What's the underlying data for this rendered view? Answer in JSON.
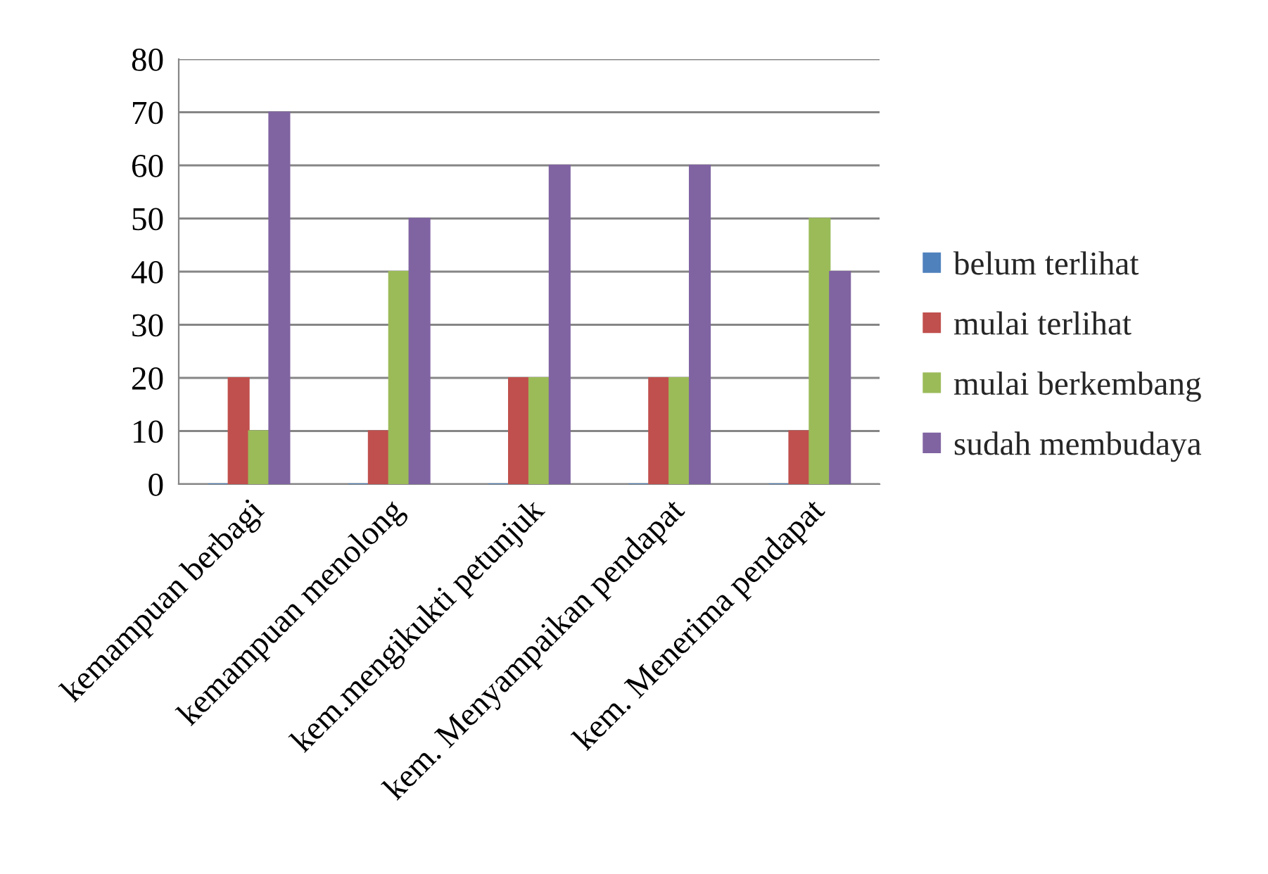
{
  "chart_data": {
    "type": "bar",
    "categories": [
      "kemampuan berbagi",
      "kemampuan menolong",
      "kem.mengikukti petunjuk",
      "kem. Menyampaikan pendapat",
      "kem. Menerima pendapat"
    ],
    "series": [
      {
        "name": "belum terlihat",
        "color": "#4f81bd",
        "values": [
          0,
          0,
          0,
          0,
          0
        ]
      },
      {
        "name": "mulai terlihat",
        "color": "#c0504d",
        "values": [
          20,
          10,
          20,
          20,
          10
        ]
      },
      {
        "name": "mulai berkembang",
        "color": "#9bbb59",
        "values": [
          10,
          40,
          20,
          20,
          50
        ]
      },
      {
        "name": "sudah membudaya",
        "color": "#8064a2",
        "values": [
          70,
          50,
          60,
          60,
          40
        ]
      }
    ],
    "ylim": [
      0,
      80
    ],
    "yticks": [
      0,
      10,
      20,
      30,
      40,
      50,
      60,
      70,
      80
    ],
    "grid": "y",
    "legend": "right"
  }
}
